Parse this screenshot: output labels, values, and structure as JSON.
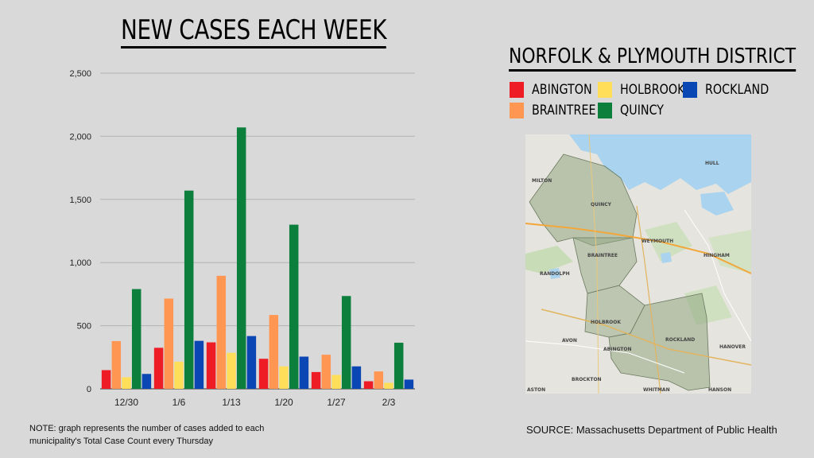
{
  "title": "NEW CASES EACH WEEK",
  "district_title": "NORFOLK & PLYMOUTH DISTRICT",
  "legend": [
    {
      "label": "ABINGTON",
      "color": "#ee1c25"
    },
    {
      "label": "HOLBROOK",
      "color": "#ffde5a"
    },
    {
      "label": "ROCKLAND",
      "color": "#0a47b4"
    },
    {
      "label": "BRAINTREE",
      "color": "#ff9752"
    },
    {
      "label": "QUINCY",
      "color": "#0b7f3b"
    }
  ],
  "map_labels": {
    "quincy": "QUINCY",
    "weymouth": "WEYMOUTH",
    "braintree": "BRAINTREE",
    "randolph": "RANDOLPH",
    "hingham": "HINGHAM",
    "holbrook": "HOLBROOK",
    "avon": "AVON",
    "abington": "ABINGTON",
    "rockland": "ROCKLAND",
    "hanover": "HANOVER",
    "brockton": "BROCKTON",
    "whitman": "WHITMAN",
    "hanson": "HANSON",
    "easton": "ASTON",
    "hull": "HULL",
    "milton": "MILTON"
  },
  "note": "NOTE: graph represents the number of cases added to each municipality's Total Case Count every Thursday",
  "source": "SOURCE: Massachusetts Department of Public Health",
  "chart_data": {
    "type": "bar",
    "title": "NEW CASES EACH WEEK",
    "categories": [
      "12/30",
      "1/6",
      "1/13",
      "1/20",
      "1/27",
      "2/3"
    ],
    "series": [
      {
        "name": "ABINGTON",
        "color": "#ee1c25",
        "values": [
          148,
          325,
          368,
          238,
          133,
          60
        ]
      },
      {
        "name": "BRAINTREE",
        "color": "#ff9752",
        "values": [
          378,
          715,
          895,
          585,
          270,
          138
        ]
      },
      {
        "name": "HOLBROOK",
        "color": "#ffde5a",
        "values": [
          92,
          215,
          285,
          178,
          110,
          48
        ]
      },
      {
        "name": "QUINCY",
        "color": "#0b7f3b",
        "values": [
          790,
          1570,
          2070,
          1300,
          735,
          365
        ]
      },
      {
        "name": "ROCKLAND",
        "color": "#0a47b4",
        "values": [
          118,
          380,
          418,
          255,
          178,
          73
        ]
      }
    ],
    "ylim": [
      0,
      2500
    ],
    "yticks": [
      0,
      500,
      1000,
      1500,
      2000,
      2500
    ],
    "ytick_labels": [
      "0",
      "500",
      "1,000",
      "1,500",
      "2,000",
      "2,500"
    ],
    "grid": true,
    "xlabel": "",
    "ylabel": ""
  }
}
